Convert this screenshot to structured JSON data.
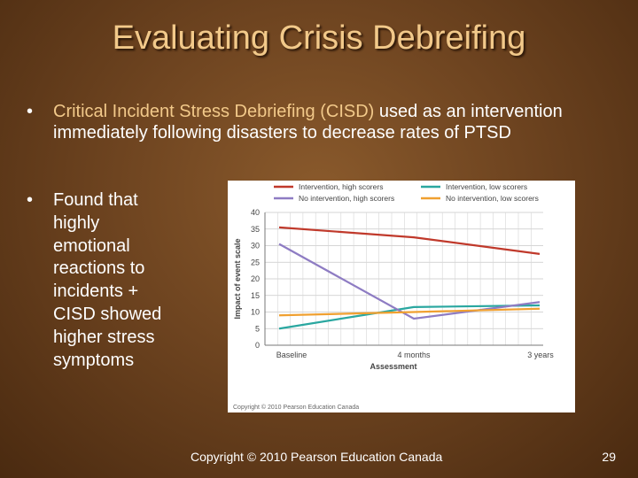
{
  "slide": {
    "title": "Evaluating Crisis Debreifing",
    "bullets": [
      {
        "highlight": "Critical Incident Stress Debriefing (CISD)",
        "text": " used as an intervention immediately following disasters to decrease rates of PTSD"
      },
      {
        "text": "Found that highly emotional reactions to incidents + CISD showed higher stress symptoms"
      }
    ],
    "bullet_symbol": "•",
    "footer": "Copyright © 2010 Pearson Education Canada",
    "page_number": "29"
  },
  "colors": {
    "title": "#f2c98a",
    "highlight": "#f2c98a",
    "red": "#c0392b",
    "purple": "#8e7cc3",
    "teal": "#2aa7a0",
    "orange": "#f0a030"
  },
  "chart_data": {
    "type": "line",
    "categories": [
      "Baseline",
      "4 months",
      "3 years"
    ],
    "xlabel": "Assessment",
    "ylabel": "Impact of event scale",
    "ylim": [
      0,
      40
    ],
    "yticks": [
      0,
      5,
      10,
      15,
      20,
      25,
      30,
      35,
      40
    ],
    "grid": true,
    "legend_position": "top",
    "credit": "Copyright © 2010 Pearson Education Canada",
    "series": [
      {
        "name": "Intervention, high scorers",
        "values": [
          35.5,
          32.5,
          27.5
        ],
        "color": "#c0392b"
      },
      {
        "name": "Intervention, low scorers",
        "values": [
          5,
          11.5,
          12
        ],
        "color": "#2aa7a0"
      },
      {
        "name": "No intervention, high scorers",
        "values": [
          30.5,
          8,
          13
        ],
        "color": "#8e7cc3"
      },
      {
        "name": "No intervention, low scorers",
        "values": [
          9,
          10,
          11
        ],
        "color": "#f0a030"
      }
    ]
  }
}
